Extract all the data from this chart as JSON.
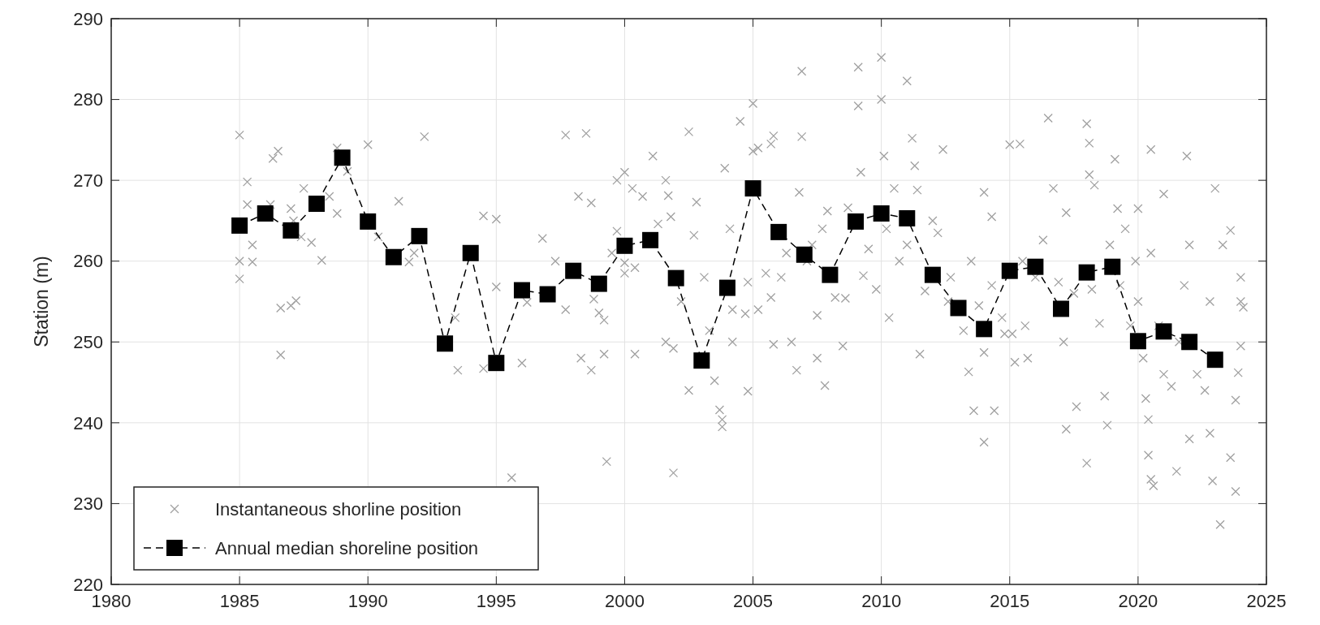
{
  "chart_data": {
    "type": "scatter",
    "ylabel": "Station (m)",
    "xlim": [
      1980,
      2025
    ],
    "xticks": [
      1980,
      1985,
      1990,
      1995,
      2000,
      2005,
      2010,
      2015,
      2020,
      2025
    ],
    "ylim": [
      220,
      290
    ],
    "yticks": [
      220,
      230,
      240,
      250,
      260,
      270,
      280,
      290
    ],
    "grid": true,
    "legend": "bottom left",
    "series": [
      {
        "name": "Instantaneous shorline position",
        "marker": "cross",
        "color": "#a0a0a0",
        "x": [
          1985.0,
          1985.0,
          1985.0,
          1985.3,
          1985.5,
          1985.5,
          1985.3,
          1986.3,
          1986.5,
          1986.6,
          1986.6,
          1986.2,
          1987.0,
          1987.2,
          1987.0,
          1987.1,
          1987.4,
          1987.5,
          1987.8,
          1988.2,
          1988.5,
          1988.8,
          1988.8,
          1989.2,
          1990.0,
          1990.4,
          1991.2,
          1991.6,
          1991.8,
          1992.2,
          1993.5,
          1993.4,
          1994.5,
          1994.5,
          1995.0,
          1995.0,
          1995.6,
          1996.0,
          1996.2,
          1996.8,
          1997.3,
          1997.7,
          1997.7,
          1998.2,
          1998.3,
          1998.5,
          1998.7,
          1998.7,
          1998.8,
          1999.0,
          1999.2,
          1999.3,
          1999.2,
          1999.5,
          1999.7,
          1999.7,
          2000.0,
          2000.0,
          2000.0,
          2000.3,
          2000.4,
          2000.4,
          2000.7,
          2001.1,
          2001.3,
          2001.6,
          2001.6,
          2001.7,
          2001.8,
          2001.9,
          2001.9,
          2002.2,
          2002.5,
          2002.5,
          2002.7,
          2002.8,
          2003.1,
          2003.3,
          2003.5,
          2003.7,
          2003.8,
          2003.8,
          2003.9,
          2004.1,
          2004.2,
          2004.2,
          2004.5,
          2004.7,
          2004.8,
          2004.8,
          2005.0,
          2005.0,
          2005.2,
          2005.2,
          2005.5,
          2005.7,
          2005.8,
          2005.7,
          2005.8,
          2006.1,
          2006.3,
          2006.5,
          2006.7,
          2006.8,
          2006.9,
          2006.9,
          2007.1,
          2007.3,
          2007.5,
          2007.5,
          2007.7,
          2007.8,
          2007.9,
          2008.2,
          2008.5,
          2008.6,
          2008.7,
          2009.1,
          2009.1,
          2009.2,
          2009.3,
          2009.5,
          2009.8,
          2010.0,
          2010.0,
          2010.1,
          2010.2,
          2010.3,
          2010.5,
          2010.7,
          2011.0,
          2011.2,
          2011.3,
          2011.0,
          2011.4,
          2011.5,
          2011.7,
          2012.0,
          2012.2,
          2012.4,
          2012.6,
          2012.7,
          2013.2,
          2013.4,
          2013.6,
          2013.5,
          2013.8,
          2014.0,
          2014.0,
          2014.3,
          2014.0,
          2014.4,
          2014.3,
          2014.7,
          2014.8,
          2015.0,
          2015.1,
          2015.2,
          2015.4,
          2015.5,
          2015.6,
          2015.7,
          2016.0,
          2016.3,
          2016.5,
          2016.7,
          2016.9,
          2017.1,
          2017.2,
          2017.2,
          2017.6,
          2017.5,
          2018.0,
          2018.0,
          2018.1,
          2018.1,
          2018.2,
          2018.3,
          2018.5,
          2018.7,
          2018.8,
          2018.9,
          2019.1,
          2019.2,
          2019.3,
          2019.5,
          2019.7,
          2019.9,
          2020.0,
          2020.0,
          2020.2,
          2020.3,
          2020.4,
          2020.4,
          2020.5,
          2020.6,
          2020.5,
          2020.5,
          2020.8,
          2021.0,
          2021.0,
          2021.3,
          2021.5,
          2021.6,
          2021.8,
          2021.9,
          2022.0,
          2022.0,
          2022.3,
          2022.6,
          2022.8,
          2022.8,
          2022.9,
          2023.0,
          2023.2,
          2023.3,
          2023.6,
          2023.6,
          2023.8,
          2023.8,
          2023.9,
          2024.0,
          2024.0,
          2024.1,
          2024.0
        ],
        "values": [
          275.6,
          260,
          257.8,
          269.8,
          262,
          259.9,
          267,
          272.7,
          273.6,
          254.2,
          248.4,
          267,
          254.5,
          255.1,
          266.5,
          265,
          263,
          269,
          262.3,
          260.1,
          268,
          274,
          265.9,
          271.1,
          274.4,
          263,
          267.4,
          259.9,
          261,
          275.4,
          246.5,
          253,
          265.6,
          246.7,
          265.2,
          256.8,
          233.2,
          247.4,
          254.9,
          262.8,
          260,
          254,
          275.6,
          268,
          248,
          275.8,
          246.5,
          267.2,
          255.3,
          253.6,
          252.7,
          235.2,
          248.5,
          261,
          263.7,
          270,
          271,
          259.8,
          258.5,
          269,
          248.5,
          259.2,
          268,
          273,
          264.6,
          250,
          270,
          268.1,
          265.5,
          249.2,
          233.8,
          255,
          276,
          244,
          263.2,
          267.3,
          258,
          251.4,
          245.2,
          241.6,
          240.4,
          239.5,
          271.5,
          264,
          250,
          254,
          277.3,
          253.5,
          243.9,
          257.4,
          279.5,
          273.6,
          274,
          254,
          258.5,
          274.5,
          275.5,
          255.5,
          249.7,
          258,
          261,
          250,
          246.5,
          268.5,
          283.5,
          275.4,
          260,
          262,
          253.3,
          248,
          264,
          244.6,
          266.2,
          255.5,
          249.5,
          255.4,
          266.6,
          284,
          279.2,
          271,
          258.2,
          261.5,
          256.5,
          285.2,
          280,
          273,
          264,
          253,
          269,
          260,
          282.3,
          275.2,
          271.8,
          262,
          268.8,
          248.5,
          256.3,
          265,
          263.5,
          273.8,
          255,
          258,
          251.4,
          246.3,
          241.5,
          260,
          254.5,
          237.6,
          268.5,
          265.5,
          248.7,
          241.5,
          257,
          253,
          251,
          274.4,
          251,
          247.5,
          274.5,
          260,
          252,
          248,
          258,
          262.6,
          277.7,
          269,
          257.4,
          250,
          239.2,
          266,
          242,
          256,
          235,
          277,
          274.6,
          270.7,
          256.5,
          269.4,
          252.3,
          243.3,
          239.7,
          262,
          272.6,
          266.5,
          257,
          264,
          252,
          260,
          266.5,
          255,
          248,
          243,
          240.4,
          236,
          233,
          232.2,
          261,
          273.8,
          252,
          246,
          268.3,
          244.5,
          234,
          250,
          257,
          273,
          238,
          262,
          246,
          244,
          238.7,
          255,
          232.8,
          269,
          227.4,
          262,
          263.8,
          235.7,
          231.5,
          242.8,
          246.2,
          255,
          249.5,
          254.3,
          258
        ]
      },
      {
        "name": "Annual median shoreline position",
        "type": "line",
        "marker": "square",
        "line_style": "dashed",
        "color": "#000000",
        "x": [
          1985,
          1986,
          1987,
          1988,
          1989,
          1990,
          1991,
          1992,
          1993,
          1994,
          1995,
          1996,
          1997,
          1998,
          1999,
          2000,
          2001,
          2002,
          2003,
          2004,
          2005,
          2006,
          2007,
          2008,
          2009,
          2010,
          2011,
          2012,
          2013,
          2014,
          2015,
          2016,
          2017,
          2018,
          2019,
          2020,
          2021,
          2022,
          2023
        ],
        "values": [
          264.4,
          265.9,
          263.8,
          267.1,
          272.8,
          264.9,
          260.5,
          263.1,
          249.8,
          261.0,
          247.4,
          256.4,
          255.9,
          258.8,
          257.2,
          261.9,
          262.6,
          257.9,
          247.7,
          256.7,
          269.0,
          263.6,
          260.8,
          258.3,
          264.9,
          265.9,
          265.3,
          258.3,
          254.2,
          251.6,
          258.8,
          259.3,
          254.1,
          258.6,
          259.3,
          250.1,
          251.3,
          250.0,
          247.8
        ]
      }
    ]
  }
}
